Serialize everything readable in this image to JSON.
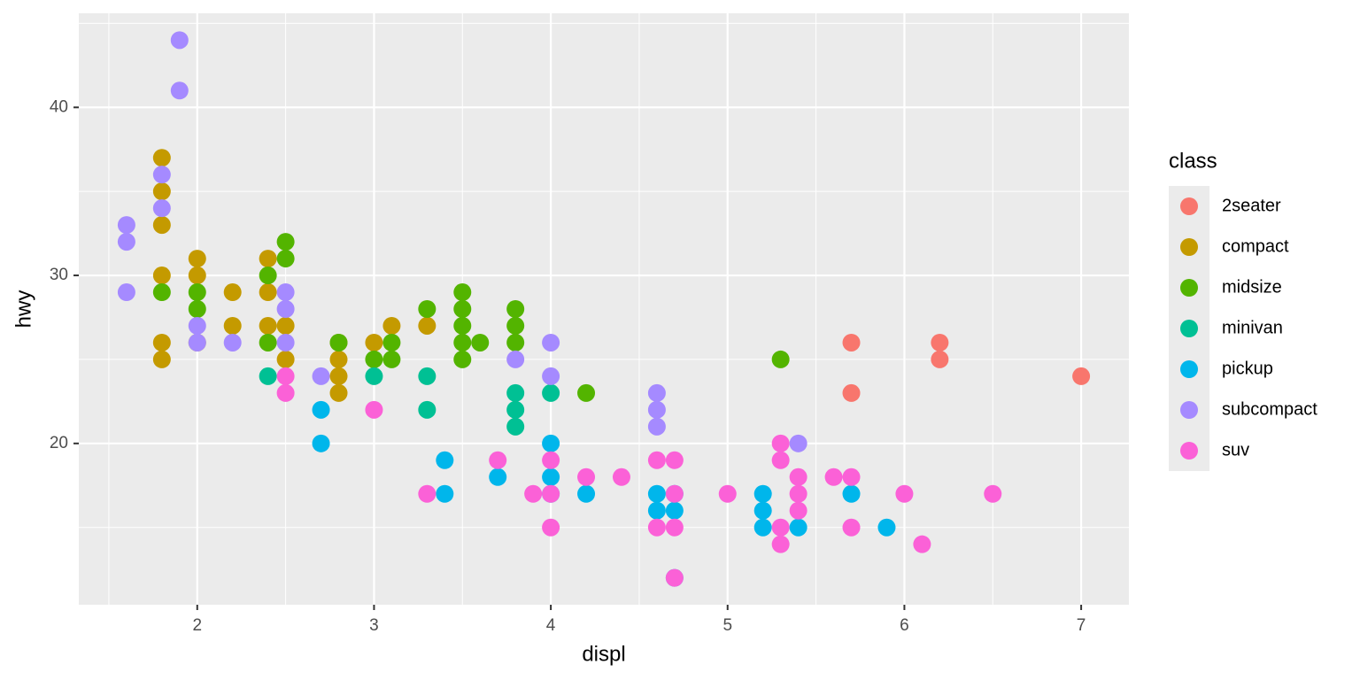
{
  "chart_data": {
    "type": "scatter",
    "x_label": "displ",
    "y_label": "hwy",
    "legend_title": "class",
    "xlim": [
      1.33,
      7.27
    ],
    "ylim": [
      10.4,
      45.6
    ],
    "xticks": [
      2,
      3,
      4,
      5,
      6,
      7
    ],
    "yticks": [
      20,
      30,
      40
    ],
    "x_minor_grid": [
      1.5,
      2.5,
      3.5,
      4.5,
      5.5,
      6.5
    ],
    "y_minor_grid": [
      15,
      25,
      35,
      45
    ],
    "grid": true,
    "legend": "right",
    "series": [
      {
        "name": "2seater",
        "color": "#F8766D",
        "x": [
          5.7,
          5.7,
          6.2,
          6.2,
          7.0
        ],
        "values": [
          26,
          23,
          26,
          25,
          24
        ]
      },
      {
        "name": "compact",
        "color": "#C49A00",
        "x": [
          1.8,
          1.8,
          1.8,
          1.8,
          1.8,
          1.8,
          2.0,
          2.0,
          2.0,
          2.2,
          2.2,
          2.4,
          2.4,
          2.4,
          2.5,
          2.5,
          2.8,
          2.8,
          2.8,
          2.8,
          3.0,
          3.1,
          3.3
        ],
        "values": [
          37,
          35,
          33,
          30,
          26,
          25,
          31,
          30,
          26,
          29,
          27,
          31,
          29,
          27,
          27,
          25,
          26,
          25,
          24,
          23,
          26,
          27,
          27
        ]
      },
      {
        "name": "midsize",
        "color": "#53B400",
        "x": [
          1.8,
          2.0,
          2.0,
          2.4,
          2.4,
          2.5,
          2.5,
          2.8,
          3.0,
          3.1,
          3.1,
          3.3,
          3.5,
          3.5,
          3.5,
          3.5,
          3.5,
          3.6,
          3.8,
          3.8,
          3.8,
          4.2,
          5.3
        ],
        "values": [
          29,
          29,
          28,
          30,
          26,
          32,
          31,
          26,
          25,
          26,
          25,
          28,
          29,
          28,
          27,
          26,
          25,
          26,
          28,
          27,
          26,
          23,
          25
        ]
      },
      {
        "name": "minivan",
        "color": "#00C094",
        "x": [
          2.4,
          3.0,
          3.3,
          3.3,
          3.8,
          3.8,
          3.8,
          4.0
        ],
        "values": [
          24,
          24,
          24,
          22,
          23,
          22,
          21,
          23
        ]
      },
      {
        "name": "pickup",
        "color": "#00B6EB",
        "x": [
          2.7,
          2.7,
          3.4,
          3.4,
          3.7,
          4.0,
          4.0,
          4.0,
          4.2,
          4.6,
          4.6,
          4.7,
          4.7,
          4.7,
          5.2,
          5.2,
          5.2,
          5.4,
          5.7,
          5.9
        ],
        "values": [
          22,
          20,
          19,
          17,
          18,
          20,
          18,
          17,
          17,
          17,
          16,
          17,
          16,
          12,
          17,
          16,
          15,
          15,
          17,
          15
        ]
      },
      {
        "name": "subcompact",
        "color": "#A58AFF",
        "x": [
          1.6,
          1.6,
          1.6,
          1.8,
          1.8,
          1.9,
          1.9,
          2.0,
          2.0,
          2.2,
          2.5,
          2.5,
          2.5,
          2.7,
          3.8,
          4.0,
          4.0,
          4.6,
          4.6,
          4.6,
          5.4
        ],
        "values": [
          33,
          32,
          29,
          36,
          34,
          44,
          41,
          27,
          26,
          26,
          29,
          28,
          26,
          24,
          25,
          26,
          24,
          23,
          22,
          21,
          20
        ]
      },
      {
        "name": "suv",
        "color": "#FB61D7",
        "x": [
          2.5,
          2.5,
          3.0,
          3.3,
          3.7,
          3.9,
          4.0,
          4.0,
          4.0,
          4.2,
          4.4,
          4.6,
          4.6,
          4.7,
          4.7,
          4.7,
          4.7,
          5.0,
          5.3,
          5.3,
          5.3,
          5.3,
          5.4,
          5.4,
          5.4,
          5.6,
          5.7,
          5.7,
          6.0,
          6.1,
          6.5
        ],
        "values": [
          24,
          23,
          22,
          17,
          19,
          17,
          19,
          17,
          15,
          18,
          18,
          19,
          15,
          19,
          17,
          15,
          12,
          17,
          20,
          19,
          15,
          14,
          18,
          17,
          16,
          18,
          18,
          15,
          17,
          14,
          17
        ]
      }
    ]
  }
}
